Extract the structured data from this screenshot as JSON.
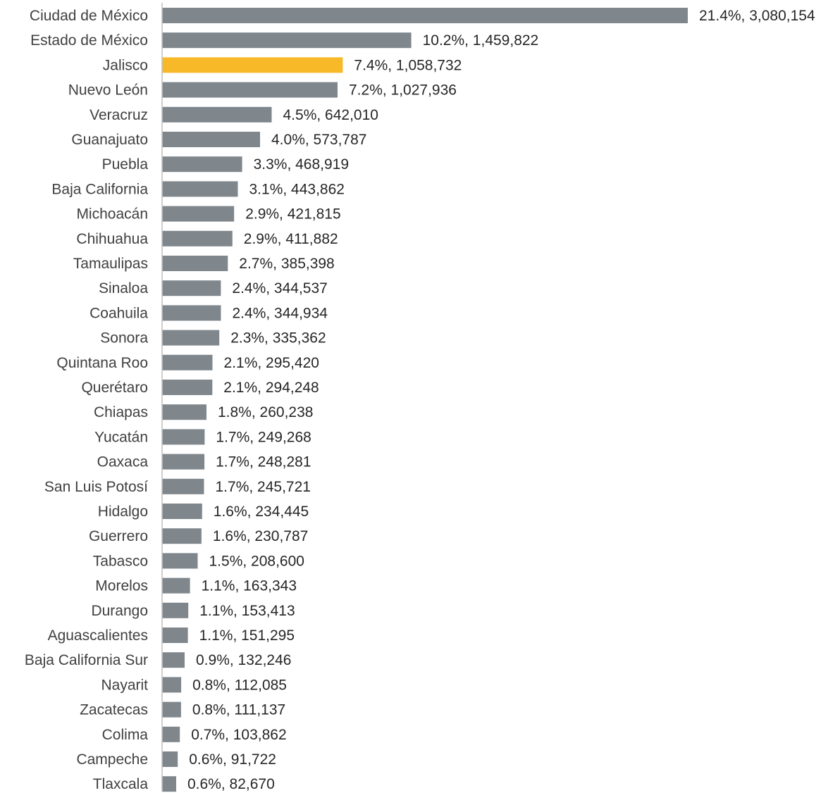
{
  "chart_data": {
    "type": "bar",
    "orientation": "horizontal",
    "title": "",
    "xlabel": "",
    "ylabel": "",
    "grid": false,
    "legend": "none",
    "bar_color": "#7f878d",
    "highlight_color": "#f7b928",
    "axis_color": "#bfbfbf",
    "highlight_category": "Jalisco",
    "categories": [
      "Ciudad de México",
      "Estado de México",
      "Jalisco",
      "Nuevo León",
      "Veracruz",
      "Guanajuato",
      "Puebla",
      "Baja California",
      "Michoacán",
      "Chihuahua",
      "Tamaulipas",
      "Sinaloa",
      "Coahuila",
      "Sonora",
      "Quintana Roo",
      "Querétaro",
      "Chiapas",
      "Yucatán",
      "Oaxaca",
      "San Luis Potosí",
      "Hidalgo",
      "Guerrero",
      "Tabasco",
      "Morelos",
      "Durango",
      "Aguascalientes",
      "Baja California Sur",
      "Nayarit",
      "Zacatecas",
      "Colima",
      "Campeche",
      "Tlaxcala"
    ],
    "values": [
      3080154,
      1459822,
      1058732,
      1027936,
      642010,
      573787,
      468919,
      443862,
      421815,
      411882,
      385398,
      344537,
      344934,
      335362,
      295420,
      294248,
      260238,
      249268,
      248281,
      245721,
      234445,
      230787,
      208600,
      163343,
      153413,
      151295,
      132246,
      112085,
      111137,
      103862,
      91722,
      82670
    ],
    "percent_labels": [
      "21.4%",
      "10.2%",
      "7.4%",
      "7.2%",
      "4.5%",
      "4.0%",
      "3.3%",
      "3.1%",
      "2.9%",
      "2.9%",
      "2.7%",
      "2.4%",
      "2.4%",
      "2.3%",
      "2.1%",
      "2.1%",
      "1.8%",
      "1.7%",
      "1.7%",
      "1.7%",
      "1.6%",
      "1.6%",
      "1.5%",
      "1.1%",
      "1.1%",
      "1.1%",
      "0.9%",
      "0.8%",
      "0.8%",
      "0.7%",
      "0.6%",
      "0.6%"
    ],
    "data_labels": [
      "21.4%, 3,080,154",
      "10.2%, 1,459,822",
      "7.4%, 1,058,732",
      "7.2%, 1,027,936",
      "4.5%, 642,010",
      "4.0%, 573,787",
      "3.3%, 468,919",
      "3.1%, 443,862",
      "2.9%, 421,815",
      "2.9%, 411,882",
      "2.7%, 385,398",
      "2.4%, 344,537",
      "2.4%, 344,934",
      "2.3%, 335,362",
      "2.1%, 295,420",
      "2.1%, 294,248",
      "1.8%, 260,238",
      "1.7%, 249,268",
      "1.7%, 248,281",
      "1.7%, 245,721",
      "1.6%, 234,445",
      "1.6%, 230,787",
      "1.5%, 208,600",
      "1.1%, 163,343",
      "1.1%, 153,413",
      "1.1%, 151,295",
      "0.9%, 132,246",
      "0.8%, 112,085",
      "0.8%, 111,137",
      "0.7%, 103,862",
      "0.6%, 91,722",
      "0.6%, 82,670"
    ]
  }
}
